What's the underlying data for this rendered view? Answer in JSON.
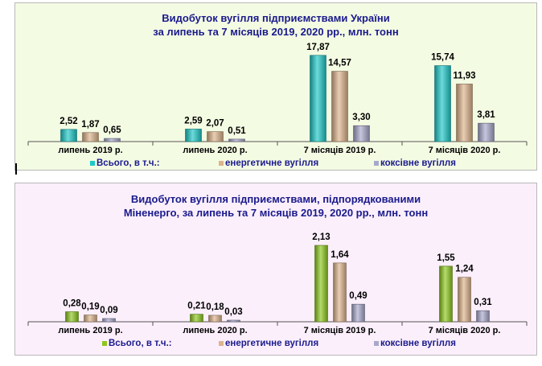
{
  "chart_data": [
    {
      "type": "bar",
      "title": "Видобуток вугілля підприємствами України",
      "subtitle": "за липень та 7 місяців 2019, 2020 рр., млн. тонн",
      "categories": [
        "липень 2019 р.",
        "липень 2020 р.",
        "7 місяців 2019 р.",
        "7 місяців 2020 р."
      ],
      "series": [
        {
          "name": "Всього, в т.ч.:",
          "values": [
            2.52,
            2.59,
            17.87,
            15.74
          ],
          "labels": [
            "2,52",
            "2,59",
            "17,87",
            "15,74"
          ],
          "color": "#1cc8c8"
        },
        {
          "name": "енергетичне вугілля",
          "values": [
            1.87,
            2.07,
            14.57,
            11.93
          ],
          "labels": [
            "1,87",
            "2,07",
            "14,57",
            "11,93"
          ],
          "color": "#ddb48c"
        },
        {
          "name": "коксівне вугілля",
          "values": [
            0.65,
            0.51,
            3.3,
            3.81
          ],
          "labels": [
            "0,65",
            "0,51",
            "3,30",
            "3,81"
          ],
          "color": "#a8a8cc"
        }
      ],
      "ylim": [
        0,
        20
      ],
      "grid": false,
      "legend": "bottom"
    },
    {
      "type": "bar",
      "title": "Видобуток вугілля підприємствами, підпорядкованими",
      "subtitle": "Міненерго, за липень та 7 місяців 2019, 2020 рр., млн. тонн",
      "categories": [
        "липень 2019 р.",
        "липень 2020 р.",
        "7 місяців 2019 р.",
        "7 місяців 2020 р."
      ],
      "series": [
        {
          "name": "Всього, в т.ч.:",
          "values": [
            0.28,
            0.21,
            2.13,
            1.55
          ],
          "labels": [
            "0,28",
            "0,21",
            "2,13",
            "1,55"
          ],
          "color": "#8cc81c"
        },
        {
          "name": "енергетичне вугілля",
          "values": [
            0.19,
            0.18,
            1.64,
            1.24
          ],
          "labels": [
            "0,19",
            "0,18",
            "1,64",
            "1,24"
          ],
          "color": "#ddb48c"
        },
        {
          "name": "коксівне вугілля",
          "values": [
            0.09,
            0.03,
            0.49,
            0.31
          ],
          "labels": [
            "0,09",
            "0,03",
            "0,49",
            "0,31"
          ],
          "color": "#a8a8cc"
        }
      ],
      "ylim": [
        0,
        2.4
      ],
      "grid": false,
      "legend": "bottom"
    }
  ]
}
